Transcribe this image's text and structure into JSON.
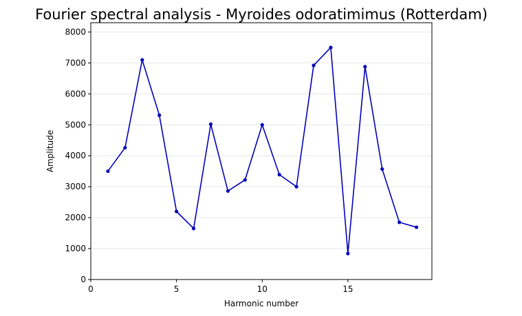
{
  "chart_data": {
    "type": "line",
    "title": "Fourier spectral analysis - Myroides odoratimimus (Rotterdam)",
    "xlabel": "Harmonic number",
    "ylabel": "Amplitude",
    "xlim": [
      0,
      19.9
    ],
    "ylim": [
      0,
      8300
    ],
    "xticks": [
      0,
      5,
      10,
      15
    ],
    "yticks": [
      0,
      1000,
      2000,
      3000,
      4000,
      5000,
      6000,
      7000,
      8000
    ],
    "grid": "horizontal",
    "series": [
      {
        "color": "#0000bb",
        "x": [
          1,
          2,
          3,
          4,
          5,
          6,
          7,
          8,
          9,
          10,
          11,
          12,
          13,
          14,
          15,
          16,
          17,
          18,
          19
        ],
        "y": [
          3500,
          4260,
          7100,
          5310,
          2200,
          1650,
          5020,
          2860,
          3220,
          5000,
          3390,
          3000,
          6920,
          7500,
          840,
          6880,
          3570,
          1850,
          1690
        ]
      }
    ]
  }
}
